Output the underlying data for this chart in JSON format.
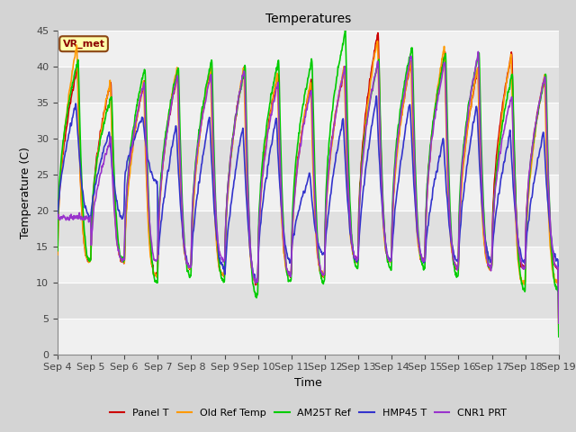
{
  "title": "Temperatures",
  "xlabel": "Time",
  "ylabel": "Temperature (C)",
  "ylim": [
    0,
    45
  ],
  "yticks": [
    0,
    5,
    10,
    15,
    20,
    25,
    30,
    35,
    40,
    45
  ],
  "date_labels": [
    "Sep 4",
    "Sep 5",
    "Sep 6",
    "Sep 7",
    "Sep 8",
    "Sep 9",
    "Sep 10",
    "Sep 11",
    "Sep 12",
    "Sep 13",
    "Sep 14",
    "Sep 15",
    "Sep 16",
    "Sep 17",
    "Sep 18",
    "Sep 19"
  ],
  "series_names": [
    "Panel T",
    "Old Ref Temp",
    "AM25T Ref",
    "HMP45 T",
    "CNR1 PRT"
  ],
  "series_colors": [
    "#cc0000",
    "#ff9900",
    "#00cc00",
    "#3333cc",
    "#9933cc"
  ],
  "series_lw": [
    1.2,
    1.2,
    1.2,
    1.2,
    1.2
  ],
  "annotation": "VR_met",
  "annotation_fg": "#8b0000",
  "annotation_bg": "#ffffaa",
  "annotation_edge": "#8b4513",
  "days": 15,
  "pts_per_day": 144,
  "band_colors": [
    "#f0f0f0",
    "#e0e0e0"
  ],
  "grid_color": "#cccccc",
  "plot_bg": "#f0f0f0"
}
